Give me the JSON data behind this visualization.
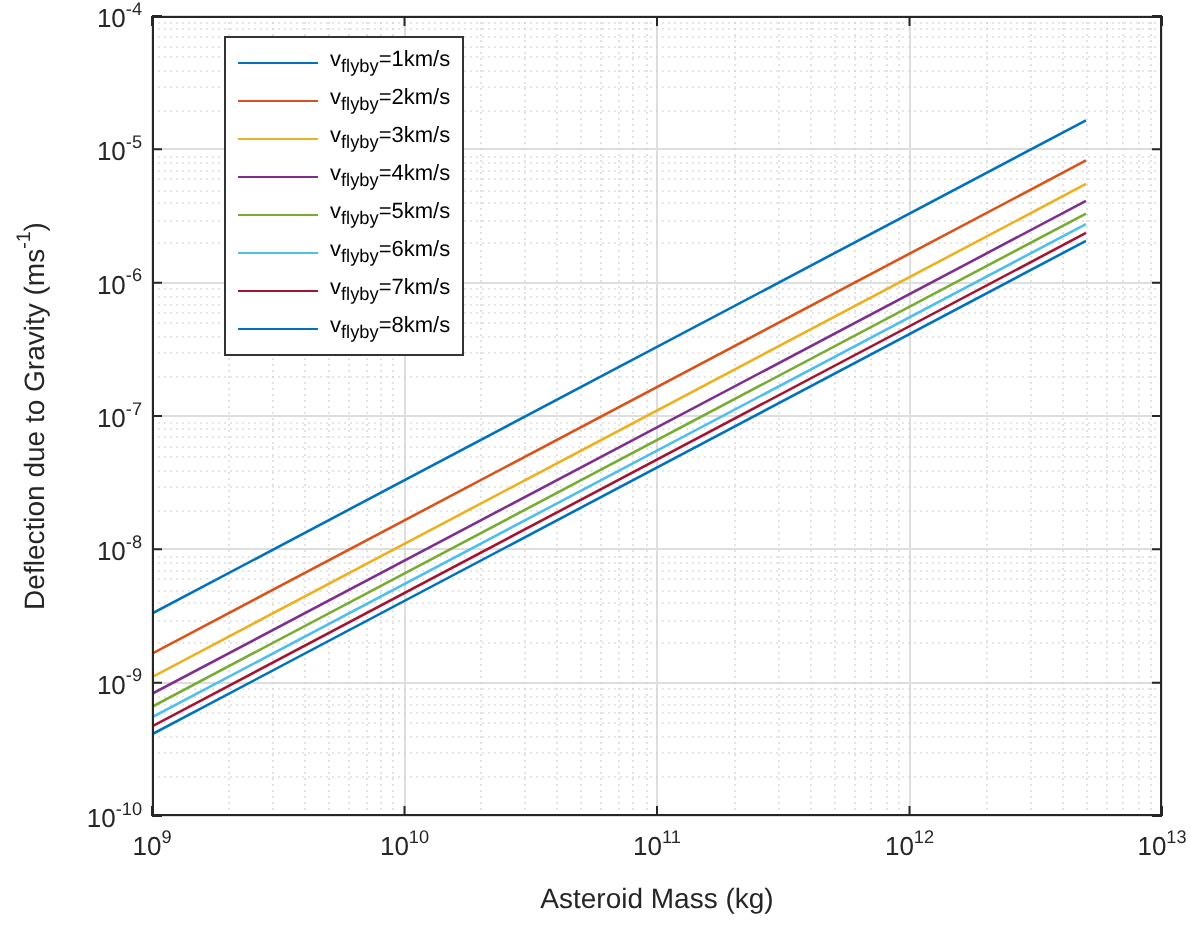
{
  "chart_data": {
    "type": "line",
    "xlabel": "Asteroid Mass (kg)",
    "ylabel": "Deflection due to Gravity (ms$^{-1}$)",
    "log": "xy",
    "grid": true,
    "legend": "top left",
    "xlim": [
      1000000000.0,
      10000000000000.0
    ],
    "ylim": [
      1e-10,
      0.0001
    ],
    "xticks": [
      {
        "value": 1000000000.0,
        "label": "10$^{9}$"
      },
      {
        "value": 10000000000.0,
        "label": "10$^{10}$"
      },
      {
        "value": 100000000000.0,
        "label": "10$^{11}$"
      },
      {
        "value": 1000000000000.0,
        "label": "10$^{12}$"
      },
      {
        "value": 10000000000000.0,
        "label": "10$^{13}$"
      }
    ],
    "yticks": [
      {
        "value": 1e-10,
        "label": "10$^{-10}$"
      },
      {
        "value": 1e-09,
        "label": "10$^{-9}$"
      },
      {
        "value": 1e-08,
        "label": "10$^{-8}$"
      },
      {
        "value": 1e-07,
        "label": "10$^{-7}$"
      },
      {
        "value": 1e-06,
        "label": "10$^{-6}$"
      },
      {
        "value": 1e-05,
        "label": "10$^{-5}$"
      },
      {
        "value": 0.0001,
        "label": "10$^{-4}$"
      }
    ],
    "x": [
      1000000000.0,
      5000000000000.0
    ],
    "series": [
      {
        "name": "v$_{flyby}$=1km/s",
        "color": "#0072bd",
        "values": [
          3.3e-09,
          1.65e-05
        ]
      },
      {
        "name": "v$_{flyby}$=2km/s",
        "color": "#d95319",
        "values": [
          1.65e-09,
          8.25e-06
        ]
      },
      {
        "name": "v$_{flyby}$=3km/s",
        "color": "#edb120",
        "values": [
          1.1e-09,
          5.5e-06
        ]
      },
      {
        "name": "v$_{flyby}$=4km/s",
        "color": "#7e2f8e",
        "values": [
          8.25e-10,
          4.1e-06
        ]
      },
      {
        "name": "v$_{flyby}$=5km/s",
        "color": "#77ac30",
        "values": [
          6.6e-10,
          3.3e-06
        ]
      },
      {
        "name": "v$_{flyby}$=6km/s",
        "color": "#4dbeee",
        "values": [
          5.5e-10,
          2.75e-06
        ]
      },
      {
        "name": "v$_{flyby}$=7km/s",
        "color": "#a2142f",
        "values": [
          4.7e-10,
          2.36e-06
        ]
      },
      {
        "name": "v$_{flyby}$=8km/s",
        "color": "#0072bd",
        "values": [
          4.1e-10,
          2.06e-06
        ]
      }
    ]
  }
}
